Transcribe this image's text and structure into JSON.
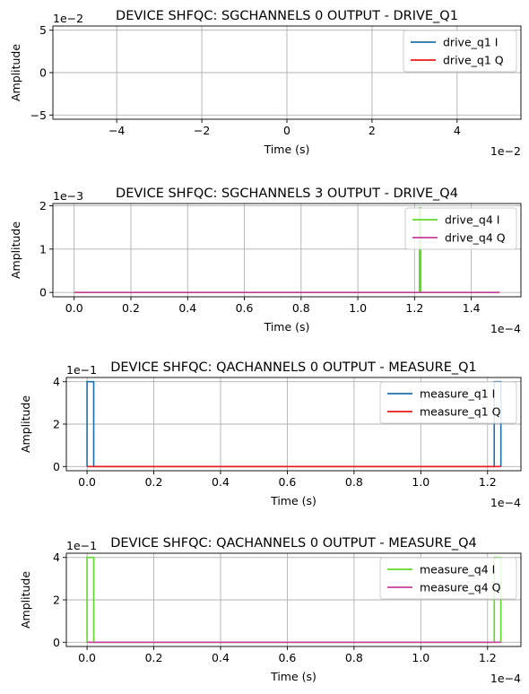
{
  "chart_data": [
    {
      "type": "line",
      "title": "DEVICE SHFQC: SGCHANNELS 0 OUTPUT - DRIVE_Q1",
      "xlabel": "Time (s)",
      "ylabel": "Amplitude",
      "x_offset_text": "1e−2",
      "y_offset_text": "1e−2",
      "xlim": [
        -5.5,
        5.5
      ],
      "ylim": [
        -5.5,
        5.5
      ],
      "xticks": [
        -4,
        -2,
        0,
        2,
        4
      ],
      "xtick_labels": [
        "−4",
        "−2",
        "0",
        "2",
        "4"
      ],
      "yticks": [
        -5,
        0,
        5
      ],
      "ytick_labels": [
        "−5",
        "0",
        "5"
      ],
      "grid": true,
      "legend_position": "top-right",
      "series": [
        {
          "name": "drive_q1 I",
          "color": "#1f6fa8",
          "x": [],
          "y": []
        },
        {
          "name": "drive_q1 Q",
          "color": "#e8191b",
          "x": [],
          "y": []
        }
      ]
    },
    {
      "type": "line",
      "title": "DEVICE SHFQC: SGCHANNELS 3 OUTPUT - DRIVE_Q4",
      "xlabel": "Time (s)",
      "ylabel": "Amplitude",
      "x_offset_text": "1e−4",
      "y_offset_text": "1e−3",
      "xlim": [
        -0.075,
        1.575
      ],
      "ylim": [
        -0.1,
        2.05
      ],
      "xticks": [
        0,
        0.2,
        0.4,
        0.6,
        0.8,
        1.0,
        1.2,
        1.4
      ],
      "xtick_labels": [
        "0.0",
        "0.2",
        "0.4",
        "0.6",
        "0.8",
        "1.0",
        "1.2",
        "1.4"
      ],
      "yticks": [
        0,
        1,
        2
      ],
      "ytick_labels": [
        "0",
        "1",
        "2"
      ],
      "grid": true,
      "legend_position": "top-right",
      "series": [
        {
          "name": "drive_q4 I",
          "color": "#5fd92c",
          "x": [
            0,
            1.217,
            1.217,
            1.222,
            1.222,
            1.5
          ],
          "y": [
            0,
            0,
            1.95,
            1.95,
            0,
            0
          ]
        },
        {
          "name": "drive_q4 Q",
          "color": "#c63e9b",
          "x": [
            0,
            1.5
          ],
          "y": [
            0,
            0
          ]
        }
      ]
    },
    {
      "type": "line",
      "title": "DEVICE SHFQC: QACHANNELS 0 OUTPUT - MEASURE_Q1",
      "xlabel": "Time (s)",
      "ylabel": "Amplitude",
      "x_offset_text": "1e−4",
      "y_offset_text": "1e−1",
      "xlim": [
        -0.062,
        1.3
      ],
      "ylim": [
        -0.2,
        4.2
      ],
      "xticks": [
        0,
        0.2,
        0.4,
        0.6,
        0.8,
        1.0,
        1.2
      ],
      "xtick_labels": [
        "0.0",
        "0.2",
        "0.4",
        "0.6",
        "0.8",
        "1.0",
        "1.2"
      ],
      "yticks": [
        0,
        2,
        4
      ],
      "ytick_labels": [
        "0",
        "2",
        "4"
      ],
      "grid": true,
      "legend_position": "top-right",
      "series": [
        {
          "name": "measure_q1 I",
          "color": "#1f6fa8",
          "x": [
            0,
            0,
            0.02,
            0.02,
            1.22,
            1.22,
            1.24,
            1.24
          ],
          "y": [
            0,
            4,
            4,
            0,
            0,
            4,
            4,
            0
          ]
        },
        {
          "name": "measure_q1 Q",
          "color": "#e8191b",
          "x": [
            0,
            1.24
          ],
          "y": [
            0,
            0
          ]
        }
      ]
    },
    {
      "type": "line",
      "title": "DEVICE SHFQC: QACHANNELS 0 OUTPUT - MEASURE_Q4",
      "xlabel": "Time (s)",
      "ylabel": "Amplitude",
      "x_offset_text": "1e−4",
      "y_offset_text": "1e−1",
      "xlim": [
        -0.062,
        1.3
      ],
      "ylim": [
        -0.2,
        4.2
      ],
      "xticks": [
        0,
        0.2,
        0.4,
        0.6,
        0.8,
        1.0,
        1.2
      ],
      "xtick_labels": [
        "0.0",
        "0.2",
        "0.4",
        "0.6",
        "0.8",
        "1.0",
        "1.2"
      ],
      "yticks": [
        0,
        2,
        4
      ],
      "ytick_labels": [
        "0",
        "2",
        "4"
      ],
      "grid": true,
      "legend_position": "top-right",
      "series": [
        {
          "name": "measure_q4 I",
          "color": "#5fd92c",
          "x": [
            0,
            0,
            0.02,
            0.02,
            1.22,
            1.22,
            1.24,
            1.24
          ],
          "y": [
            0,
            4,
            4,
            0,
            0,
            4,
            4,
            0
          ]
        },
        {
          "name": "measure_q4 Q",
          "color": "#c63e9b",
          "x": [
            0,
            1.24
          ],
          "y": [
            0,
            0
          ]
        }
      ]
    }
  ]
}
